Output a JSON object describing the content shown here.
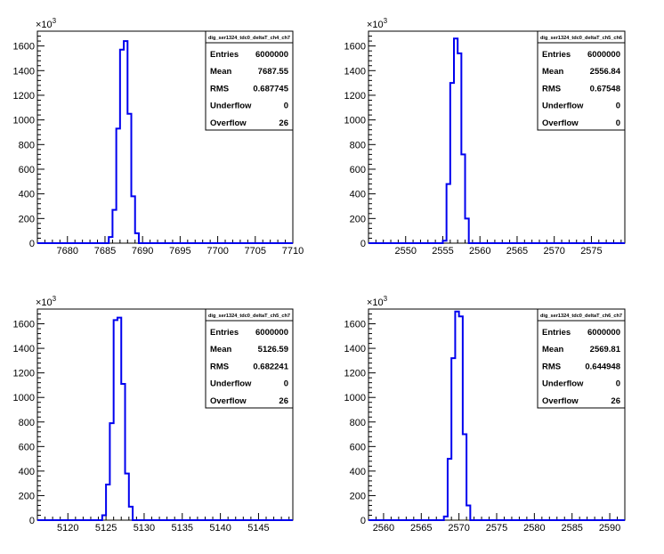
{
  "chart_data": [
    {
      "type": "histogram",
      "title": "",
      "y_exponent_label": "×10",
      "y_exponent_power": "3",
      "xlim": [
        7676,
        7710
      ],
      "ylim": [
        0,
        1720
      ],
      "x_ticks": [
        7680,
        7685,
        7690,
        7695,
        7700,
        7705,
        7710
      ],
      "y_ticks": [
        0,
        200,
        400,
        600,
        800,
        1000,
        1200,
        1400,
        1600
      ],
      "bins": {
        "edges": [
          7685.5,
          7686,
          7686.5,
          7687,
          7687.5,
          7688,
          7688.5,
          7689,
          7689.5
        ],
        "values": [
          50,
          270,
          930,
          1570,
          1640,
          1050,
          380,
          80
        ]
      },
      "stats": {
        "name": "dig_ser1324_tdc0_deltaT_ch4_ch7",
        "rows": [
          {
            "label": "Entries",
            "value": "6000000"
          },
          {
            "label": "Mean",
            "value": "7687.55"
          },
          {
            "label": "RMS",
            "value": "0.687745"
          },
          {
            "label": "Underflow",
            "value": "0"
          },
          {
            "label": "Overflow",
            "value": "26"
          }
        ]
      }
    },
    {
      "type": "histogram",
      "title": "",
      "y_exponent_label": "×10",
      "y_exponent_power": "3",
      "xlim": [
        2545,
        2579.5
      ],
      "ylim": [
        0,
        1720
      ],
      "x_ticks": [
        2550,
        2555,
        2560,
        2565,
        2570,
        2575
      ],
      "y_ticks": [
        0,
        200,
        400,
        600,
        800,
        1000,
        1200,
        1400,
        1600
      ],
      "bins": {
        "edges": [
          2555,
          2555.5,
          2556,
          2556.5,
          2557,
          2557.5,
          2558,
          2558.5
        ],
        "values": [
          20,
          480,
          1300,
          1660,
          1540,
          720,
          200
        ]
      },
      "stats": {
        "name": "dig_ser1324_tdc0_deltaT_ch5_ch6",
        "rows": [
          {
            "label": "Entries",
            "value": "6000000"
          },
          {
            "label": "Mean",
            "value": "2556.84"
          },
          {
            "label": "RMS",
            "value": "0.67548"
          },
          {
            "label": "Underflow",
            "value": "0"
          },
          {
            "label": "Overflow",
            "value": "0"
          }
        ]
      }
    },
    {
      "type": "histogram",
      "title": "",
      "y_exponent_label": "×10",
      "y_exponent_power": "3",
      "xlim": [
        5116,
        5149.5
      ],
      "ylim": [
        0,
        1720
      ],
      "x_ticks": [
        5120,
        5125,
        5130,
        5135,
        5140,
        5145
      ],
      "y_ticks": [
        0,
        200,
        400,
        600,
        800,
        1000,
        1200,
        1400,
        1600
      ],
      "bins": {
        "edges": [
          5124.5,
          5125,
          5125.5,
          5126,
          5126.5,
          5127,
          5127.5,
          5128,
          5128.5
        ],
        "values": [
          40,
          290,
          790,
          1630,
          1650,
          1110,
          380,
          110
        ]
      },
      "stats": {
        "name": "dig_ser1324_tdc0_deltaT_ch5_ch7",
        "rows": [
          {
            "label": "Entries",
            "value": "6000000"
          },
          {
            "label": "Mean",
            "value": "5126.59"
          },
          {
            "label": "RMS",
            "value": "0.682241"
          },
          {
            "label": "Underflow",
            "value": "0"
          },
          {
            "label": "Overflow",
            "value": "26"
          }
        ]
      }
    },
    {
      "type": "histogram",
      "title": "",
      "y_exponent_label": "×10",
      "y_exponent_power": "3",
      "xlim": [
        2558,
        2592
      ],
      "ylim": [
        0,
        1720
      ],
      "x_ticks": [
        2560,
        2565,
        2570,
        2575,
        2580,
        2585,
        2590
      ],
      "y_ticks": [
        0,
        200,
        400,
        600,
        800,
        1000,
        1200,
        1400,
        1600
      ],
      "bins": {
        "edges": [
          2568,
          2568.5,
          2569,
          2569.5,
          2570,
          2570.5,
          2571,
          2571.5
        ],
        "values": [
          30,
          500,
          1320,
          1700,
          1660,
          700,
          120
        ]
      },
      "stats": {
        "name": "dig_ser1324_tdc0_deltaT_ch6_ch7",
        "rows": [
          {
            "label": "Entries",
            "value": "6000000"
          },
          {
            "label": "Mean",
            "value": "2569.81"
          },
          {
            "label": "RMS",
            "value": "0.644948"
          },
          {
            "label": "Underflow",
            "value": "0"
          },
          {
            "label": "Overflow",
            "value": "26"
          }
        ]
      }
    }
  ],
  "colors": {
    "histogram_line": "#0000ee",
    "axis": "#000000",
    "background": "#ffffff"
  }
}
